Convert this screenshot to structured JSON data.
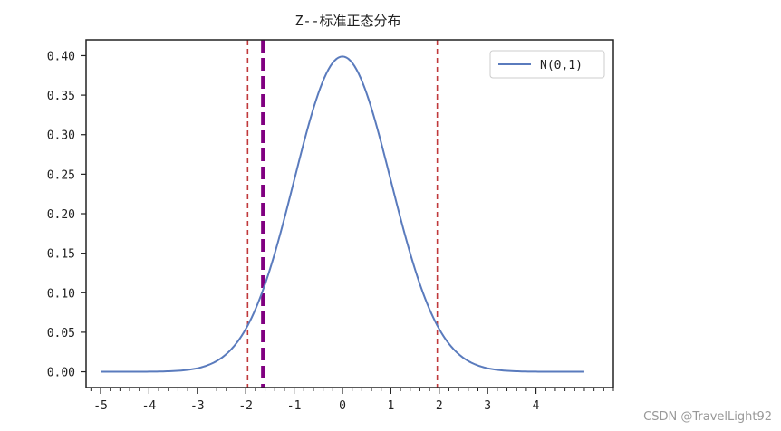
{
  "chart_data": {
    "type": "line",
    "title": "Z--标准正态分布",
    "xlim": [
      -5.3,
      5.6
    ],
    "ylim": [
      -0.02,
      0.42
    ],
    "x_tick_labels": [
      "-5",
      "-4",
      "-3",
      "-2",
      "-1",
      "0",
      "1",
      "2",
      "3",
      "4"
    ],
    "x_ticks": [
      -5,
      -4,
      -3,
      -2,
      -1,
      0,
      1,
      2,
      3,
      4
    ],
    "y_tick_labels": [
      "0.00",
      "0.05",
      "0.10",
      "0.15",
      "0.20",
      "0.25",
      "0.30",
      "0.35",
      "0.40"
    ],
    "y_ticks": [
      0,
      0.05,
      0.1,
      0.15,
      0.2,
      0.25,
      0.3,
      0.35,
      0.4
    ],
    "minor_x_step": 0.2,
    "grid": false,
    "legend": {
      "position": "top-right"
    },
    "series": [
      {
        "name": "N(0,1)",
        "color": "#5a7bbd",
        "x": [
          -5,
          -4.5,
          -4,
          -3.5,
          -3,
          -2.5,
          -2,
          -1.5,
          -1,
          -0.5,
          0,
          0.5,
          1,
          1.5,
          2,
          2.5,
          3,
          3.5,
          4,
          4.5,
          5
        ],
        "y": [
          0.0,
          0.0,
          0.0001,
          0.0009,
          0.0044,
          0.0175,
          0.054,
          0.1295,
          0.242,
          0.3521,
          0.3989,
          0.3521,
          0.242,
          0.1295,
          0.054,
          0.0175,
          0.0044,
          0.0009,
          0.0001,
          0.0,
          0.0
        ]
      }
    ],
    "vlines": [
      {
        "x": -1.96,
        "color": "#c0393b",
        "style": "dashed"
      },
      {
        "x": 1.96,
        "color": "#c0393b",
        "style": "dashed"
      },
      {
        "x": -1.645,
        "color": "#800080",
        "style": "dashed-bold"
      }
    ]
  },
  "watermark": "CSDN @TravelLight92"
}
